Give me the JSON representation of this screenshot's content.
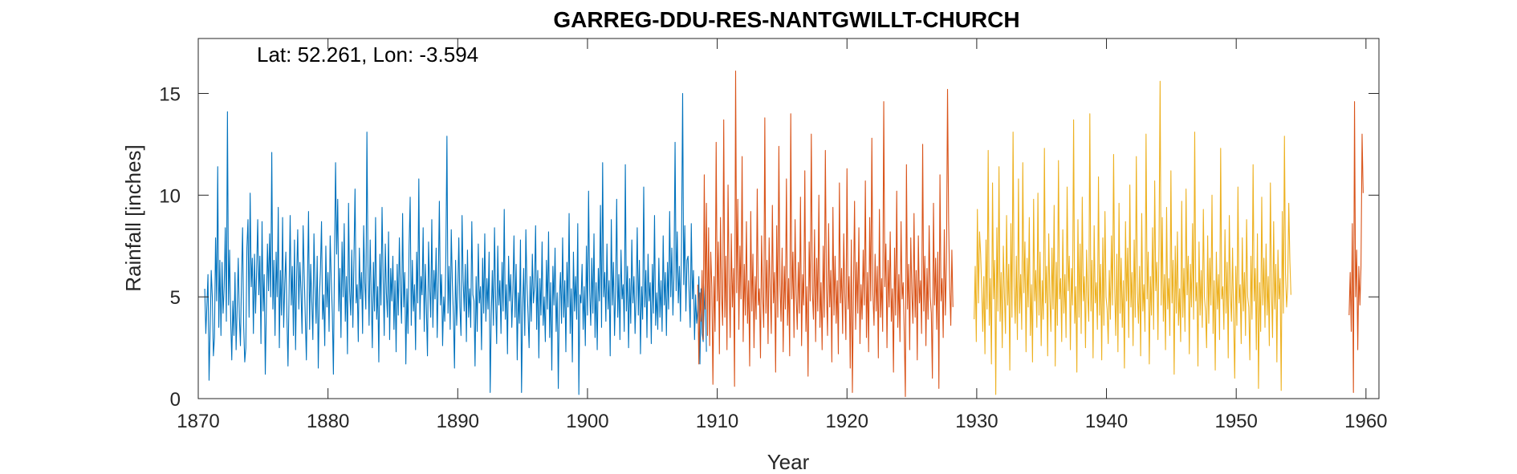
{
  "chart_data": {
    "type": "line",
    "title": "GARREG-DDU-RES-NANTGWILLT-CHURCH",
    "annotation": "Lat: 52.261, Lon: -3.594",
    "xlabel": "Year",
    "ylabel": "Rainfall [inches]",
    "xlim": [
      1870,
      1961
    ],
    "ylim": [
      0,
      17.7
    ],
    "xticks": [
      1870,
      1880,
      1890,
      1900,
      1910,
      1920,
      1930,
      1940,
      1950,
      1960
    ],
    "yticks": [
      0,
      5,
      10,
      15
    ],
    "grid": false,
    "legend": "none",
    "series": [
      {
        "color": "#0072BD",
        "x_start": 1870.5,
        "x_step": 0.0833333,
        "values": [
          5.4,
          3.2,
          4.6,
          6.1,
          0.9,
          3.4,
          6.3,
          5.0,
          2.1,
          3.0,
          7.9,
          4.8,
          11.4,
          3.5,
          6.8,
          3.1,
          6.7,
          4.2,
          5.5,
          8.4,
          3.8,
          14.1,
          4.6,
          7.3,
          3.9,
          1.9,
          4.8,
          3.1,
          6.2,
          2.4,
          4.5,
          6.9,
          4.0,
          2.6,
          5.9,
          8.4,
          3.6,
          1.8,
          2.5,
          7.4,
          8.8,
          4.0,
          10.1,
          5.5,
          6.9,
          3.2,
          7.1,
          4.2,
          6.3,
          8.8,
          5.1,
          7.0,
          2.7,
          8.7,
          4.3,
          6.1,
          1.2,
          4.5,
          7.6,
          5.3,
          8.1,
          5.0,
          12.1,
          4.4,
          6.8,
          3.1,
          7.2,
          5.0,
          9.4,
          2.5,
          6.3,
          4.1,
          8.9,
          3.5,
          5.6,
          7.2,
          4.0,
          1.6,
          5.2,
          9.0,
          4.6,
          6.5,
          3.1,
          7.8,
          2.4,
          6.0,
          8.3,
          4.4,
          6.7,
          5.3,
          3.2,
          8.5,
          6.1,
          4.0,
          1.9,
          5.7,
          9.2,
          3.4,
          6.6,
          4.8,
          2.9,
          8.1,
          5.5,
          3.7,
          7.0,
          1.5,
          4.9,
          6.3,
          8.7,
          3.9,
          5.1,
          2.6,
          7.5,
          4.5,
          6.2,
          3.3,
          8.0,
          5.9,
          4.2,
          1.2,
          6.8,
          11.6,
          7.1,
          9.8,
          4.3,
          6.4,
          3.0,
          7.7,
          5.0,
          8.6,
          3.8,
          6.0,
          2.2,
          9.6,
          5.3,
          4.1,
          7.3,
          3.5,
          6.9,
          10.3,
          4.7,
          5.6,
          2.8,
          7.4,
          4.9,
          6.2,
          3.2,
          8.5,
          5.7,
          4.4,
          13.1,
          6.5,
          3.6,
          7.8,
          5.0,
          2.5,
          6.7,
          4.3,
          8.9,
          3.9,
          5.5,
          1.8,
          7.1,
          4.6,
          9.4,
          6.0,
          3.1,
          7.6,
          5.2,
          4.0,
          8.2,
          2.9,
          6.4,
          4.8,
          7.0,
          3.4,
          5.8,
          2.3,
          6.6,
          4.1,
          7.9,
          5.3,
          3.7,
          9.1,
          4.5,
          6.2,
          1.7,
          5.4,
          3.2,
          7.5,
          9.9,
          3.6,
          6.8,
          4.3,
          5.6,
          2.4,
          7.2,
          4.7,
          10.8,
          3.9,
          6.0,
          5.1,
          8.4,
          3.3,
          6.6,
          4.4,
          2.1,
          7.7,
          5.5,
          4.0,
          8.8,
          3.5,
          6.3,
          4.9,
          7.4,
          3.0,
          5.8,
          9.7,
          4.6,
          6.1,
          2.6,
          5.0,
          3.8,
          7.0,
          12.9,
          4.2,
          6.5,
          3.4,
          8.3,
          5.7,
          4.1,
          1.5,
          6.8,
          3.6,
          5.2,
          7.9,
          4.5,
          3.1,
          9.0,
          5.8,
          4.3,
          6.6,
          2.8,
          7.3,
          4.0,
          5.4,
          3.5,
          8.7,
          5.1,
          4.8,
          1.6,
          6.0,
          3.3,
          7.6,
          4.7,
          5.5,
          2.4,
          6.9,
          4.2,
          8.1,
          3.8,
          5.9,
          4.4,
          7.2,
          0.3,
          4.1,
          6.3,
          3.6,
          8.4,
          5.0,
          2.7,
          7.5,
          4.6,
          5.8,
          3.2,
          6.7,
          4.3,
          9.3,
          3.9,
          5.6,
          2.2,
          7.0,
          4.8,
          6.1,
          3.5,
          5.3,
          8.0,
          4.0,
          6.6,
          1.9,
          5.2,
          3.7,
          7.8,
          0.3,
          4.5,
          6.4,
          3.1,
          8.3,
          5.6,
          4.2,
          2.5,
          6.0,
          3.8,
          7.1,
          4.7,
          5.5,
          8.5,
          3.4,
          6.3,
          2.0,
          5.9,
          4.1,
          7.7,
          3.6,
          5.0,
          2.8,
          6.8,
          4.4,
          8.2,
          3.0,
          5.7,
          1.4,
          6.5,
          4.6,
          7.4,
          3.3,
          5.2,
          0.5,
          4.9,
          6.2,
          3.7,
          7.9,
          4.0,
          5.8,
          2.3,
          6.7,
          4.5,
          9.1,
          3.2,
          5.4,
          1.8,
          7.2,
          4.3,
          6.0,
          3.9,
          8.6,
          0.2,
          5.1,
          4.7,
          6.6,
          3.4,
          5.5,
          2.6,
          7.5,
          4.1,
          10.2,
          5.3,
          3.6,
          6.9,
          4.2,
          8.1,
          3.0,
          5.7,
          2.4,
          6.4,
          4.8,
          9.5,
          3.5,
          11.6,
          5.0,
          6.2,
          3.8,
          7.6,
          4.4,
          5.8,
          2.1,
          8.8,
          4.6,
          6.7,
          3.1,
          5.3,
          9.8,
          4.0,
          6.1,
          2.9,
          7.3,
          4.9,
          5.6,
          3.3,
          11.5,
          4.3,
          6.5,
          2.5,
          5.9,
          3.7,
          7.8,
          4.7,
          6.0,
          3.2,
          5.1,
          8.4,
          4.1,
          6.8,
          2.2,
          5.5,
          3.9,
          10.4,
          4.5,
          6.3,
          3.0,
          7.1,
          4.8,
          5.7,
          2.7,
          6.6,
          4.2,
          9.0,
          3.6,
          5.2,
          3.4,
          6.9,
          4.0,
          5.8,
          3.3,
          8.0,
          4.6,
          6.2,
          3.1,
          6.7,
          4.4,
          9.2,
          5.0,
          7.4,
          4.1,
          6.1,
          12.6,
          5.3,
          8.2,
          4.7,
          6.5,
          3.8,
          7.7,
          15.0,
          5.6,
          8.5,
          4.3,
          6.8,
          7.0,
          5.2,
          3.5,
          8.6,
          4.9,
          6.3,
          2.9,
          5.1,
          3.7,
          4.4,
          6.0,
          1.7,
          5.4,
          3.2,
          2.8,
          4.6,
          5.9,
          2.3
        ],
        "segments": []
      },
      {
        "color": "#D95319",
        "x_start": 1908.5,
        "x_step": 0.0833333,
        "values": [
          5.6,
          1.7,
          5.2,
          3.8,
          6.3,
          2.9,
          11.0,
          4.4,
          9.6,
          3.1,
          8.4,
          2.6,
          7.2,
          5.5,
          0.7,
          6.0,
          3.3,
          12.6,
          4.8,
          7.7,
          2.2,
          8.9,
          5.1,
          3.6,
          13.7,
          4.0,
          7.0,
          2.4,
          10.5,
          5.7,
          3.0,
          8.1,
          4.5,
          6.4,
          0.6,
          16.1,
          5.2,
          9.8,
          3.4,
          7.5,
          4.9,
          11.9,
          2.8,
          6.6,
          4.1,
          8.7,
          3.7,
          5.8,
          1.6,
          9.2,
          4.3,
          7.1,
          2.5,
          6.0,
          3.9,
          10.3,
          4.6,
          5.4,
          2.0,
          8.0,
          5.0,
          3.5,
          13.8,
          4.2,
          6.8,
          2.7,
          7.9,
          5.3,
          3.2,
          9.5,
          4.7,
          6.2,
          1.3,
          8.5,
          4.0,
          12.4,
          5.6,
          3.8,
          7.4,
          2.3,
          6.5,
          4.4,
          10.8,
          3.6,
          5.9,
          2.1,
          14.0,
          4.9,
          7.2,
          3.0,
          8.8,
          5.1,
          3.4,
          6.7,
          4.2,
          9.9,
          2.6,
          6.1,
          4.6,
          11.2,
          3.3,
          5.5,
          1.1,
          7.7,
          4.8,
          13.0,
          5.2,
          3.9,
          8.3,
          2.8,
          6.9,
          4.3,
          10.0,
          3.5,
          5.7,
          2.4,
          7.5,
          4.0,
          12.2,
          5.4,
          3.1,
          8.6,
          4.5,
          6.3,
          1.8,
          9.4,
          4.1,
          7.0,
          3.7,
          5.8,
          2.2,
          10.6,
          4.7,
          6.4,
          3.2,
          8.1,
          5.0,
          2.9,
          11.3,
          4.4,
          6.0,
          1.5,
          7.8,
          0.3,
          5.3,
          9.7,
          3.4,
          6.7,
          4.2,
          8.4,
          2.7,
          5.6,
          3.9,
          7.3,
          4.6,
          10.7,
          3.0,
          6.2,
          2.3,
          8.9,
          4.8,
          12.8,
          5.1,
          3.6,
          7.1,
          4.3,
          6.5,
          2.0,
          9.3,
          4.0,
          5.9,
          3.3,
          14.6,
          5.5,
          7.6,
          2.5,
          6.8,
          4.5,
          8.2,
          3.8,
          5.4,
          1.3,
          7.4,
          4.1,
          10.2,
          3.5,
          6.1,
          2.8,
          8.7,
          4.9,
          5.7,
          3.1,
          0.1,
          11.5,
          4.4,
          6.6,
          2.4,
          7.9,
          5.2,
          3.7,
          9.1,
          4.0,
          6.3,
          1.9,
          8.0,
          4.7,
          5.8,
          3.2,
          12.5,
          4.3,
          7.0,
          2.6,
          6.4,
          3.9,
          8.5,
          5.0,
          4.2,
          1.0,
          9.6,
          4.6,
          6.9,
          3.4,
          7.2,
          0.5,
          11.0,
          4.8,
          5.9,
          3.0,
          8.3,
          4.1,
          6.7,
          15.2,
          8.7,
          5.5,
          3.6,
          7.3,
          4.5
        ],
        "segments": []
      },
      {
        "color": "#EDB120",
        "x_start": 1929.8,
        "x_step": 0.0833333,
        "values": [
          3.9,
          6.5,
          2.8,
          9.3,
          4.7,
          8.2,
          7.1,
          5.4,
          3.3,
          6.0,
          2.2,
          7.8,
          4.4,
          12.2,
          3.6,
          5.9,
          1.7,
          10.6,
          4.9,
          6.8,
          0.2,
          8.4,
          4.3,
          11.4,
          3.8,
          6.2,
          2.5,
          7.5,
          5.1,
          3.2,
          9.0,
          4.6,
          6.6,
          1.4,
          8.6,
          4.0,
          13.1,
          5.5,
          3.7,
          7.0,
          2.9,
          10.8,
          4.2,
          6.1,
          3.4,
          11.6,
          5.2,
          7.7,
          2.3,
          6.9,
          4.5,
          8.9,
          3.1,
          5.6,
          1.8,
          9.8,
          4.8,
          6.3,
          3.5,
          10.1,
          4.1,
          7.2,
          2.6,
          5.8,
          3.9,
          12.3,
          4.7,
          6.5,
          2.1,
          8.1,
          5.0,
          3.3,
          7.4,
          4.4,
          9.5,
          1.6,
          6.7,
          3.6,
          11.7,
          4.9,
          5.9,
          2.8,
          8.3,
          4.2,
          6.1,
          3.0,
          10.4,
          5.3,
          7.0,
          2.4,
          6.4,
          4.6,
          13.7,
          3.7,
          5.5,
          1.3,
          8.8,
          4.0,
          7.6,
          3.2,
          9.9,
          4.8,
          6.0,
          2.5,
          7.3,
          5.1,
          3.8,
          14.0,
          4.3,
          6.8,
          2.0,
          8.5,
          4.7,
          5.7,
          3.4,
          10.9,
          4.1,
          6.6,
          1.9,
          7.9,
          3.6,
          9.2,
          5.0,
          4.4,
          2.7,
          6.3,
          3.9,
          8.0,
          4.6,
          12.0,
          5.4,
          3.1,
          7.1,
          2.3,
          9.6,
          4.2,
          6.9,
          3.5,
          5.8,
          1.5,
          8.7,
          4.8,
          7.4,
          3.0,
          10.5,
          4.5,
          6.2,
          2.6,
          7.8,
          4.0,
          11.9,
          5.2,
          3.7,
          6.5,
          2.1,
          9.1,
          4.3,
          5.6,
          3.3,
          13.0,
          4.9,
          7.2,
          1.7,
          6.0,
          4.1,
          8.4,
          3.4,
          10.7,
          5.3,
          6.7,
          2.9,
          7.6,
          15.6,
          4.6,
          8.9,
          3.8,
          6.1,
          2.4,
          9.4,
          4.4,
          5.9,
          3.1,
          11.2,
          4.7,
          6.8,
          1.2,
          7.5,
          4.2,
          8.2,
          3.6,
          5.4,
          2.8,
          9.7,
          4.0,
          6.4,
          3.3,
          10.3,
          5.1,
          7.0,
          2.2,
          6.6,
          4.5,
          8.6,
          3.9,
          13.1,
          4.8,
          5.7,
          1.6,
          7.7,
          4.1,
          6.3,
          3.5,
          9.3,
          5.0,
          4.3,
          2.5,
          8.0,
          3.7,
          6.9,
          4.6,
          10.0,
          3.2,
          5.8,
          1.4,
          7.2,
          4.4,
          6.1,
          2.9,
          12.3,
          4.9,
          5.5,
          3.4,
          8.3,
          4.2,
          6.7,
          2.0,
          9.0,
          5.2,
          3.8,
          7.4,
          4.0,
          1.0,
          6.5,
          3.6,
          10.4,
          4.7,
          5.6,
          2.7,
          7.9,
          4.3,
          6.2,
          3.1,
          8.8,
          5.0,
          4.5,
          1.9,
          7.0,
          3.9,
          11.5,
          4.8,
          6.4,
          2.4,
          8.1,
          0.5,
          5.7,
          3.3,
          9.9,
          4.6,
          6.9,
          3.5,
          7.6,
          4.1,
          6.0,
          2.6,
          10.6,
          5.3,
          3.0,
          8.7,
          4.4,
          6.6,
          1.8,
          7.3,
          4.9,
          5.9,
          0.4,
          9.2,
          4.2,
          12.9,
          6.1,
          4.5,
          5.5,
          9.6,
          6.8,
          5.1
        ]
      },
      {
        "color": "#D95319",
        "x_start": 1958.7,
        "x_step": 0.0833333,
        "values": [
          4.1,
          6.2,
          3.3,
          8.6,
          0.3,
          14.6,
          5.0,
          7.3,
          2.4,
          6.5,
          4.6,
          6.5,
          13.0,
          10.1
        ]
      }
    ]
  }
}
